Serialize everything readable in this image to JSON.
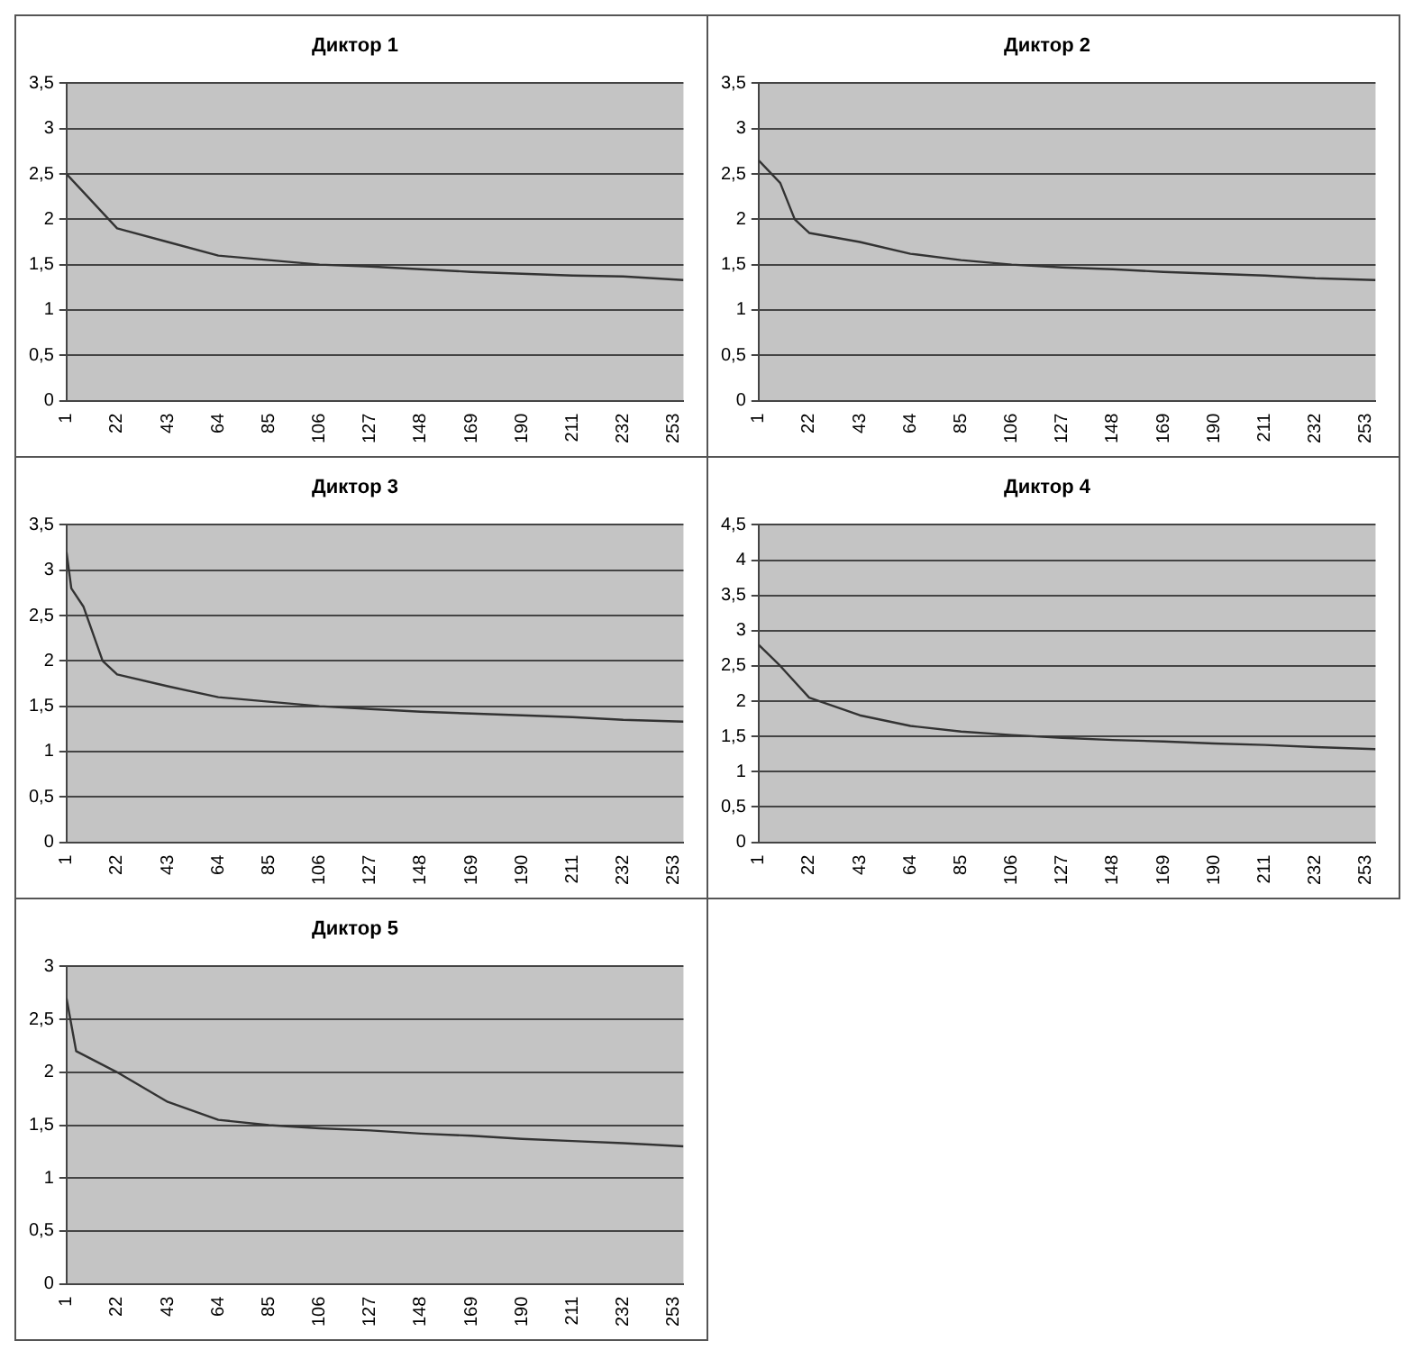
{
  "chart_data": [
    {
      "type": "line",
      "title": "Диктор 1",
      "color": "#333333",
      "grid": "y",
      "x": [
        1,
        8,
        22,
        43,
        64,
        85,
        106,
        127,
        148,
        169,
        190,
        211,
        232,
        257
      ],
      "values": [
        2.5,
        2.3,
        1.9,
        1.75,
        1.6,
        1.55,
        1.5,
        1.48,
        1.45,
        1.42,
        1.4,
        1.38,
        1.37,
        1.33
      ],
      "xlim": [
        1,
        257
      ],
      "xticks": [
        1,
        22,
        43,
        64,
        85,
        106,
        127,
        148,
        169,
        190,
        211,
        232,
        253
      ],
      "ylim": [
        0,
        3.5
      ],
      "yticks": [
        0,
        {
          "value": 0.5,
          "label": "0,5"
        },
        1,
        {
          "value": 1.5,
          "label": "1,5"
        },
        2,
        {
          "value": 2.5,
          "label": "2,5"
        },
        3,
        {
          "value": 3.5,
          "label": "3,5"
        }
      ]
    },
    {
      "type": "line",
      "title": "Диктор 2",
      "color": "#333333",
      "grid": "y",
      "x": [
        1,
        10,
        16,
        22,
        43,
        64,
        85,
        106,
        127,
        148,
        169,
        190,
        211,
        232,
        257
      ],
      "values": [
        2.65,
        2.4,
        2.0,
        1.85,
        1.75,
        1.62,
        1.55,
        1.5,
        1.47,
        1.45,
        1.42,
        1.4,
        1.38,
        1.35,
        1.33
      ],
      "xlim": [
        1,
        257
      ],
      "xticks": [
        1,
        22,
        43,
        64,
        85,
        106,
        127,
        148,
        169,
        190,
        211,
        232,
        253
      ],
      "ylim": [
        0,
        3.5
      ],
      "yticks": [
        0,
        {
          "value": 0.5,
          "label": "0,5"
        },
        1,
        {
          "value": 1.5,
          "label": "1,5"
        },
        2,
        {
          "value": 2.5,
          "label": "2,5"
        },
        3,
        {
          "value": 3.5,
          "label": "3,5"
        }
      ]
    },
    {
      "type": "line",
      "title": "Диктор 3",
      "color": "#333333",
      "grid": "y",
      "x": [
        1,
        3,
        8,
        16,
        22,
        43,
        64,
        85,
        106,
        127,
        148,
        169,
        190,
        211,
        232,
        257
      ],
      "values": [
        3.2,
        2.8,
        2.6,
        2.0,
        1.85,
        1.72,
        1.6,
        1.55,
        1.5,
        1.47,
        1.44,
        1.42,
        1.4,
        1.38,
        1.35,
        1.33
      ],
      "xlim": [
        1,
        257
      ],
      "xticks": [
        1,
        22,
        43,
        64,
        85,
        106,
        127,
        148,
        169,
        190,
        211,
        232,
        253
      ],
      "ylim": [
        0,
        3.5
      ],
      "yticks": [
        0,
        {
          "value": 0.5,
          "label": "0,5"
        },
        1,
        {
          "value": 1.5,
          "label": "1,5"
        },
        2,
        {
          "value": 2.5,
          "label": "2,5"
        },
        3,
        {
          "value": 3.5,
          "label": "3,5"
        }
      ]
    },
    {
      "type": "line",
      "title": "Диктор 4",
      "color": "#333333",
      "grid": "y",
      "x": [
        1,
        10,
        22,
        43,
        64,
        85,
        106,
        127,
        148,
        169,
        190,
        211,
        232,
        257
      ],
      "values": [
        2.8,
        2.5,
        2.05,
        1.8,
        1.65,
        1.57,
        1.52,
        1.48,
        1.45,
        1.43,
        1.4,
        1.38,
        1.35,
        1.32
      ],
      "xlim": [
        1,
        257
      ],
      "xticks": [
        1,
        22,
        43,
        64,
        85,
        106,
        127,
        148,
        169,
        190,
        211,
        232,
        253
      ],
      "ylim": [
        0,
        4.5
      ],
      "yticks": [
        0,
        {
          "value": 0.5,
          "label": "0,5"
        },
        1,
        {
          "value": 1.5,
          "label": "1,5"
        },
        2,
        {
          "value": 2.5,
          "label": "2,5"
        },
        3,
        {
          "value": 3.5,
          "label": "3,5"
        },
        4,
        {
          "value": 4.5,
          "label": "4,5"
        }
      ]
    },
    {
      "type": "line",
      "title": "Диктор 5",
      "color": "#333333",
      "grid": "y",
      "x": [
        1,
        5,
        22,
        43,
        64,
        85,
        106,
        127,
        148,
        169,
        190,
        211,
        232,
        257
      ],
      "values": [
        2.7,
        2.2,
        2.0,
        1.72,
        1.55,
        1.5,
        1.47,
        1.45,
        1.42,
        1.4,
        1.37,
        1.35,
        1.33,
        1.3
      ],
      "xlim": [
        1,
        257
      ],
      "xticks": [
        1,
        22,
        43,
        64,
        85,
        106,
        127,
        148,
        169,
        190,
        211,
        232,
        253
      ],
      "ylim": [
        0,
        3
      ],
      "yticks": [
        0,
        {
          "value": 0.5,
          "label": "0,5"
        },
        1,
        {
          "value": 1.5,
          "label": "1,5"
        },
        2,
        {
          "value": 2.5,
          "label": "2,5"
        },
        3
      ]
    }
  ]
}
